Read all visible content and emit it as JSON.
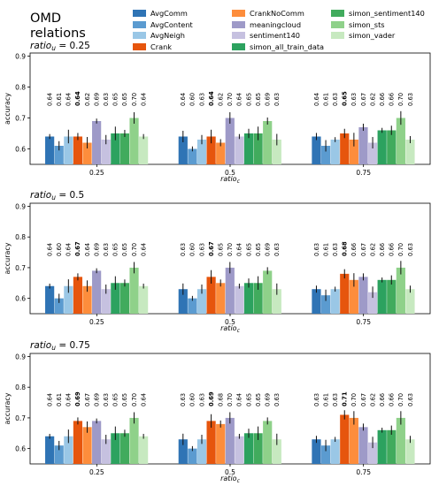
{
  "title_lines": [
    "OMD",
    "relations"
  ],
  "legend": [
    {
      "name": "AvgComm",
      "color": "#2f74b5"
    },
    {
      "name": "AvgContent",
      "color": "#5b9bd0"
    },
    {
      "name": "AvgNeigh",
      "color": "#9ac7e6"
    },
    {
      "name": "Crank",
      "color": "#e6550d"
    },
    {
      "name": "CrankNoComm",
      "color": "#fd8d3c"
    },
    {
      "name": "meaningcloud",
      "color": "#9e9ac8"
    },
    {
      "name": "sentiment140",
      "color": "#c6c1e0"
    },
    {
      "name": "simon_all_train_data",
      "color": "#2ca25f"
    },
    {
      "name": "simon_sentiment140",
      "color": "#41ab5d"
    },
    {
      "name": "simon_sts",
      "color": "#8fd18a"
    },
    {
      "name": "simon_vader",
      "color": "#c7e9c0"
    }
  ],
  "chart_data": [
    {
      "type": "bar",
      "title": "ratio_u = 0.25",
      "xlabel": "ratio_c",
      "ylabel": "accuracy",
      "ylim": [
        0.55,
        0.91
      ],
      "yticks": [
        "0.6",
        "0.7",
        "0.8",
        "0.9"
      ],
      "categories": [
        "0.25",
        "0.5",
        "0.75"
      ],
      "series": [
        {
          "name": "AvgComm",
          "values": [
            0.64,
            0.64,
            0.64
          ],
          "labels": [
            "0.64",
            "0.64",
            "0.64"
          ]
        },
        {
          "name": "AvgContent",
          "values": [
            0.61,
            0.6,
            0.61
          ],
          "labels": [
            "0.61",
            "0.60",
            "0.61"
          ]
        },
        {
          "name": "AvgNeigh",
          "values": [
            0.64,
            0.63,
            0.63
          ],
          "labels": [
            "0.64",
            "0.63",
            "0.63"
          ]
        },
        {
          "name": "Crank",
          "values": [
            0.64,
            0.64,
            0.65
          ],
          "labels": [
            "0.64",
            "0.64",
            "0.65"
          ]
        },
        {
          "name": "CrankNoComm",
          "values": [
            0.62,
            0.62,
            0.63
          ],
          "labels": [
            "0.62",
            "0.62",
            "0.63"
          ]
        },
        {
          "name": "meaningcloud",
          "values": [
            0.69,
            0.7,
            0.67
          ],
          "labels": [
            "0.69",
            "0.70",
            "0.67"
          ]
        },
        {
          "name": "sentiment140",
          "values": [
            0.63,
            0.64,
            0.62
          ],
          "labels": [
            "0.63",
            "0.64",
            "0.62"
          ]
        },
        {
          "name": "simon_all_train_data",
          "values": [
            0.65,
            0.65,
            0.66
          ],
          "labels": [
            "0.65",
            "0.65",
            "0.66"
          ]
        },
        {
          "name": "simon_sentiment140",
          "values": [
            0.65,
            0.65,
            0.66
          ],
          "labels": [
            "0.65",
            "0.65",
            "0.66"
          ]
        },
        {
          "name": "simon_sts",
          "values": [
            0.7,
            0.69,
            0.7
          ],
          "labels": [
            "0.70",
            "0.69",
            "0.70"
          ]
        },
        {
          "name": "simon_vader",
          "values": [
            0.64,
            0.63,
            0.63
          ],
          "labels": [
            "0.64",
            "0.63",
            "0.63"
          ]
        }
      ],
      "bold_series": "Crank"
    },
    {
      "type": "bar",
      "title": "ratio_u = 0.5",
      "xlabel": "ratio_c",
      "ylabel": "accuracy",
      "ylim": [
        0.55,
        0.91
      ],
      "yticks": [
        "0.6",
        "0.7",
        "0.8",
        "0.9"
      ],
      "categories": [
        "0.25",
        "0.5",
        "0.75"
      ],
      "series": [
        {
          "name": "AvgComm",
          "values": [
            0.64,
            0.63,
            0.63
          ],
          "labels": [
            "0.64",
            "0.63",
            "0.63"
          ]
        },
        {
          "name": "AvgContent",
          "values": [
            0.6,
            0.6,
            0.61
          ],
          "labels": [
            "0.60",
            "0.60",
            "0.61"
          ]
        },
        {
          "name": "AvgNeigh",
          "values": [
            0.64,
            0.63,
            0.63
          ],
          "labels": [
            "0.64",
            "0.63",
            "0.63"
          ]
        },
        {
          "name": "Crank",
          "values": [
            0.67,
            0.67,
            0.68
          ],
          "labels": [
            "0.67",
            "0.67",
            "0.68"
          ]
        },
        {
          "name": "CrankNoComm",
          "values": [
            0.64,
            0.65,
            0.66
          ],
          "labels": [
            "0.64",
            "0.65",
            "0.66"
          ]
        },
        {
          "name": "meaningcloud",
          "values": [
            0.69,
            0.7,
            0.67
          ],
          "labels": [
            "0.69",
            "0.70",
            "0.67"
          ]
        },
        {
          "name": "sentiment140",
          "values": [
            0.63,
            0.64,
            0.62
          ],
          "labels": [
            "0.63",
            "0.64",
            "0.62"
          ]
        },
        {
          "name": "simon_all_train_data",
          "values": [
            0.65,
            0.65,
            0.66
          ],
          "labels": [
            "0.65",
            "0.65",
            "0.66"
          ]
        },
        {
          "name": "simon_sentiment140",
          "values": [
            0.65,
            0.65,
            0.66
          ],
          "labels": [
            "0.65",
            "0.65",
            "0.66"
          ]
        },
        {
          "name": "simon_sts",
          "values": [
            0.7,
            0.69,
            0.7
          ],
          "labels": [
            "0.70",
            "0.69",
            "0.70"
          ]
        },
        {
          "name": "simon_vader",
          "values": [
            0.64,
            0.63,
            0.63
          ],
          "labels": [
            "0.64",
            "0.63",
            "0.63"
          ]
        }
      ],
      "bold_series": "Crank"
    },
    {
      "type": "bar",
      "title": "ratio_u = 0.75",
      "xlabel": "ratio_c",
      "ylabel": "accuracy",
      "ylim": [
        0.55,
        0.91
      ],
      "yticks": [
        "0.6",
        "0.7",
        "0.8",
        "0.9"
      ],
      "categories": [
        "0.25",
        "0.5",
        "0.75"
      ],
      "series": [
        {
          "name": "AvgComm",
          "values": [
            0.64,
            0.63,
            0.63
          ],
          "labels": [
            "0.64",
            "0.63",
            "0.63"
          ]
        },
        {
          "name": "AvgContent",
          "values": [
            0.61,
            0.6,
            0.61
          ],
          "labels": [
            "0.61",
            "0.60",
            "0.61"
          ]
        },
        {
          "name": "AvgNeigh",
          "values": [
            0.64,
            0.63,
            0.63
          ],
          "labels": [
            "0.64",
            "0.63",
            "0.63"
          ]
        },
        {
          "name": "Crank",
          "values": [
            0.69,
            0.69,
            0.71
          ],
          "labels": [
            "0.69",
            "0.69",
            "0.71"
          ]
        },
        {
          "name": "CrankNoComm",
          "values": [
            0.67,
            0.68,
            0.7
          ],
          "labels": [
            "0.67",
            "0.68",
            "0.70"
          ]
        },
        {
          "name": "meaningcloud",
          "values": [
            0.69,
            0.7,
            0.67
          ],
          "labels": [
            "0.69",
            "0.70",
            "0.67"
          ]
        },
        {
          "name": "sentiment140",
          "values": [
            0.63,
            0.64,
            0.62
          ],
          "labels": [
            "0.63",
            "0.64",
            "0.62"
          ]
        },
        {
          "name": "simon_all_train_data",
          "values": [
            0.65,
            0.65,
            0.66
          ],
          "labels": [
            "0.65",
            "0.65",
            "0.66"
          ]
        },
        {
          "name": "simon_sentiment140",
          "values": [
            0.65,
            0.65,
            0.66
          ],
          "labels": [
            "0.65",
            "0.65",
            "0.66"
          ]
        },
        {
          "name": "simon_sts",
          "values": [
            0.7,
            0.69,
            0.7
          ],
          "labels": [
            "0.70",
            "0.69",
            "0.70"
          ]
        },
        {
          "name": "simon_vader",
          "values": [
            0.64,
            0.63,
            0.63
          ],
          "labels": [
            "0.64",
            "0.63",
            "0.63"
          ]
        }
      ],
      "bold_series": "Crank"
    }
  ]
}
